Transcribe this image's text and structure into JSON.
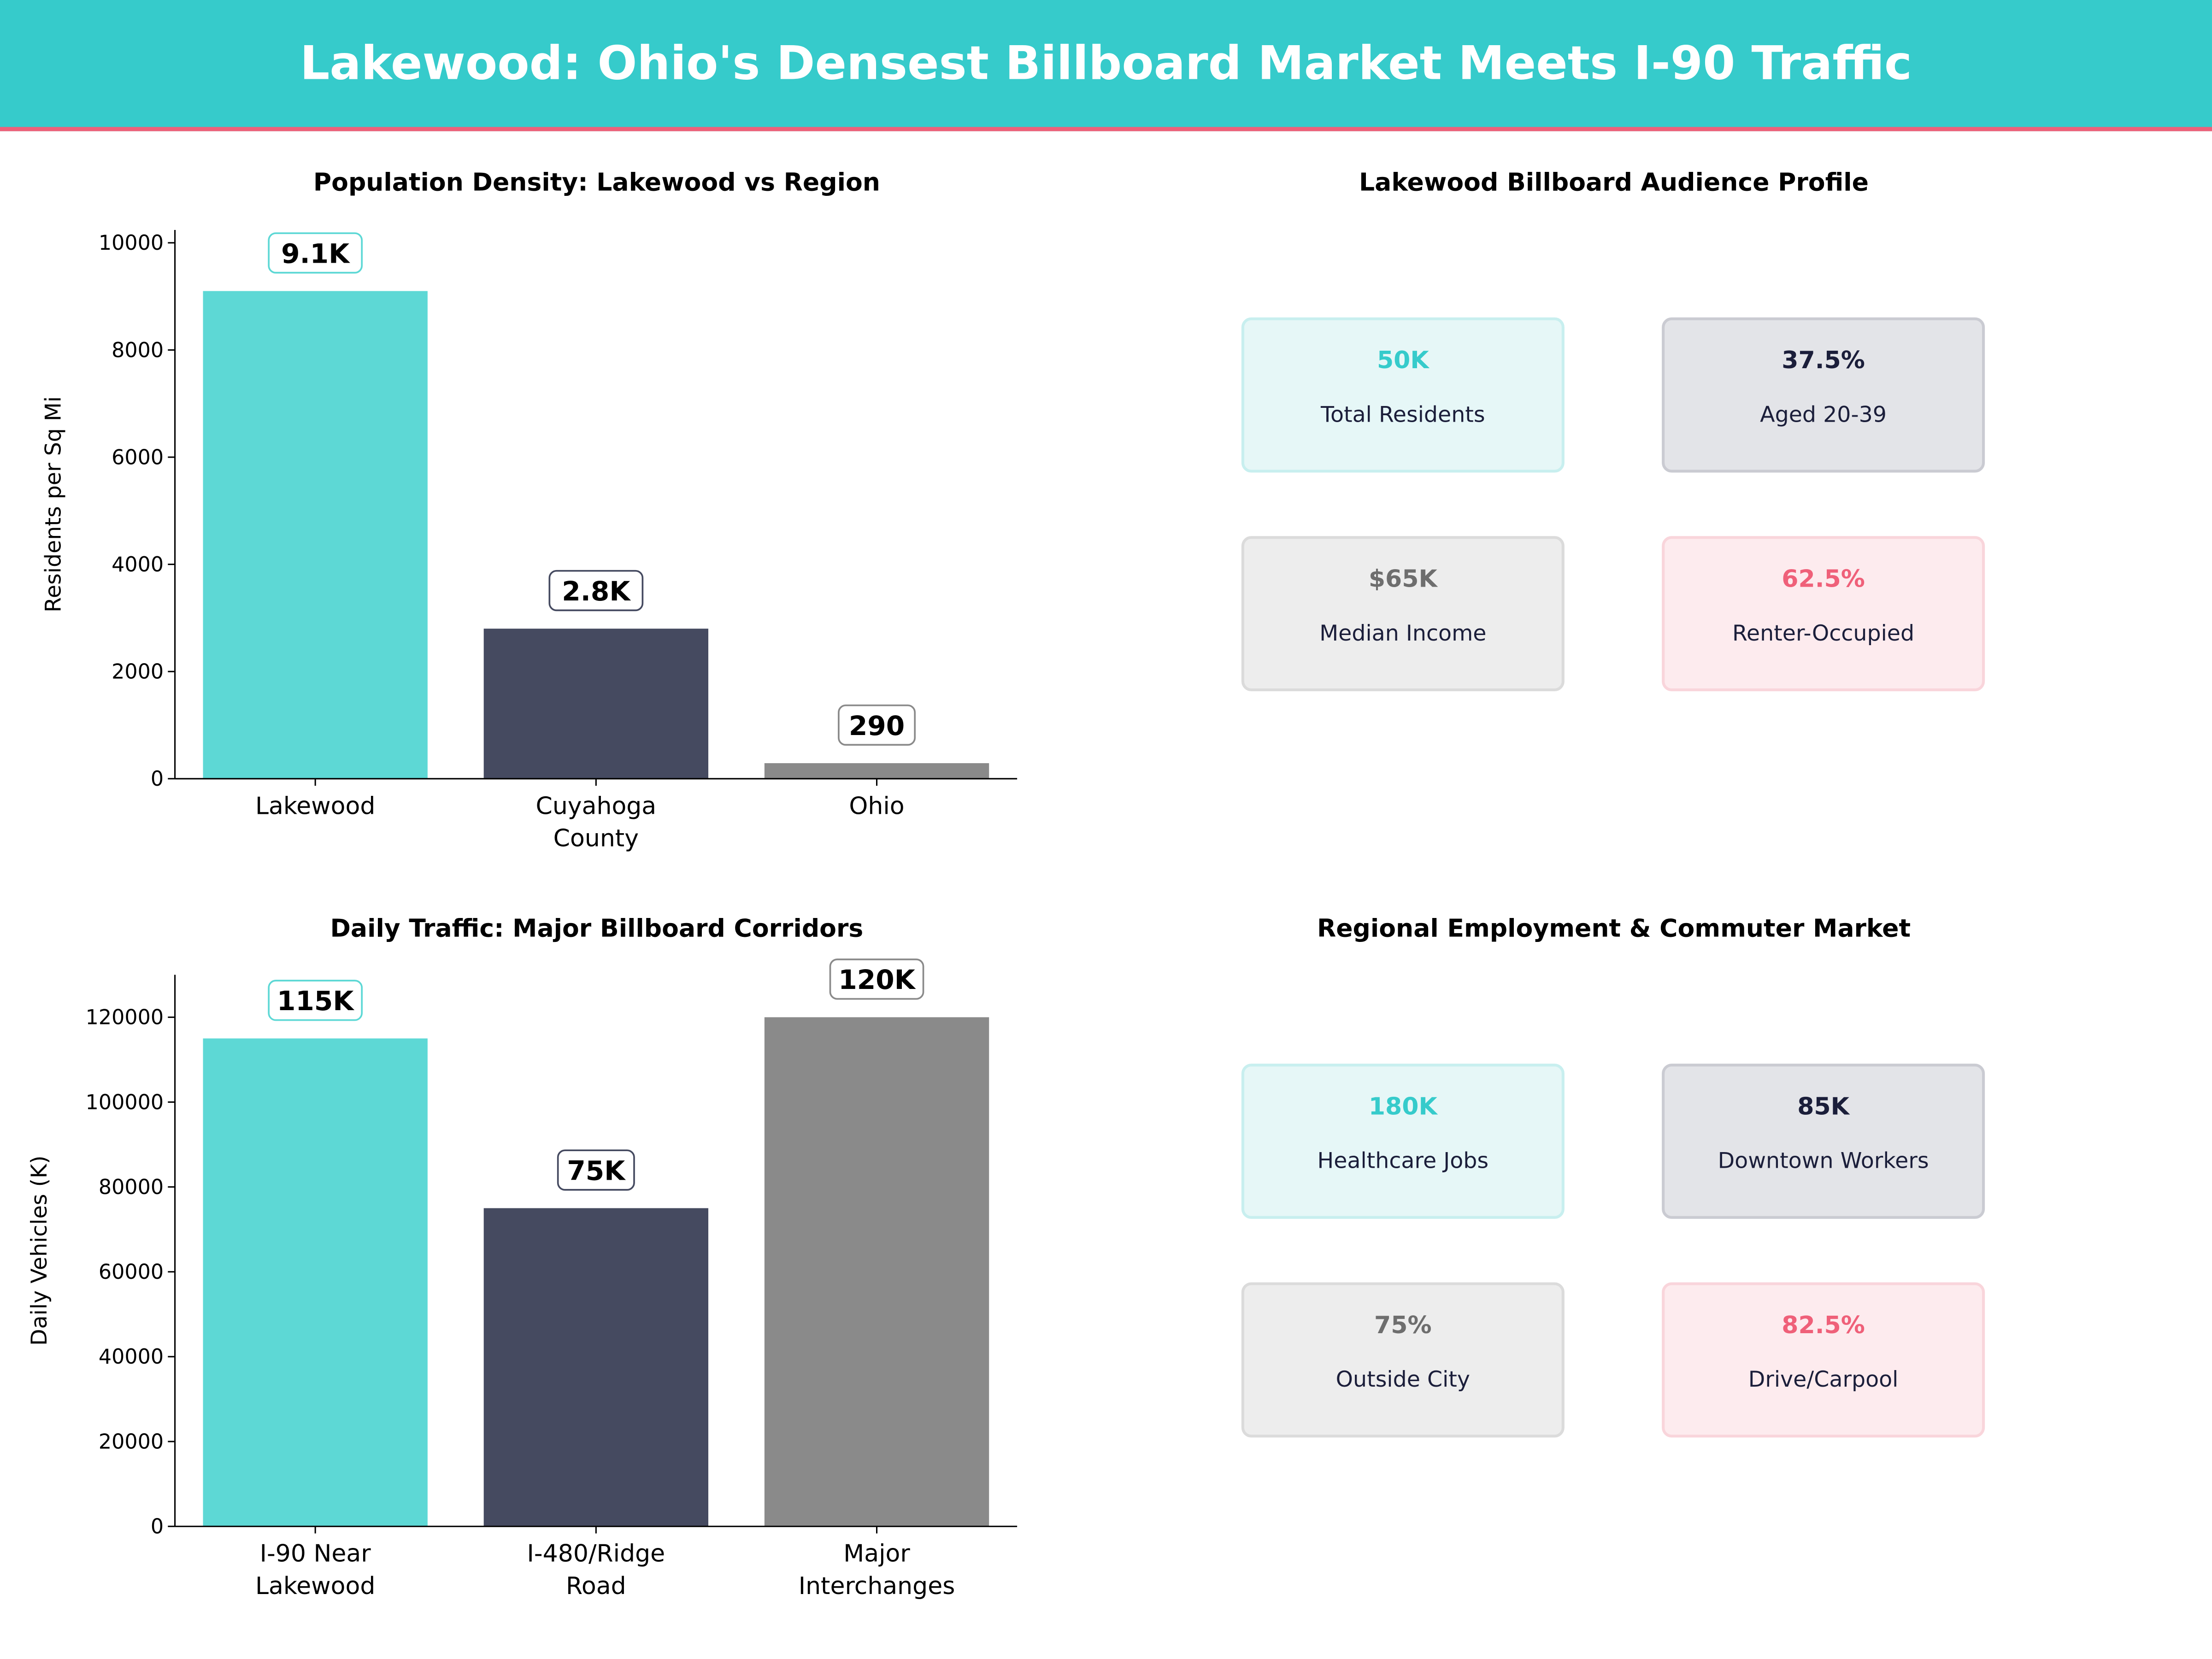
{
  "header": {
    "title": "Lakewood: Ohio's Densest Billboard Market Meets I-90 Traffic"
  },
  "colors": {
    "header_bg": "#36CBCB",
    "header_accent": "#EF6079",
    "teal": "#5DD8D5",
    "navy": "#454A60",
    "gray": "#8A8A8A"
  },
  "chart_data": [
    {
      "type": "bar",
      "title": "Population Density: Lakewood vs Region",
      "xlabel": "",
      "ylabel": "Residents per Sq Mi",
      "categories": [
        [
          "Lakewood"
        ],
        [
          "Cuyahoga",
          "County"
        ],
        [
          "Ohio"
        ]
      ],
      "values": [
        9100,
        2800,
        290
      ],
      "data_labels": [
        "9.1K",
        "2.8K",
        "290"
      ],
      "bar_colors": [
        "#5DD8D5",
        "#454A60",
        "#8A8A8A"
      ],
      "ylim": [
        0,
        10240
      ],
      "yticks": [
        0,
        2000,
        4000,
        6000,
        8000,
        10000
      ],
      "grid": false
    },
    {
      "type": "bar",
      "title": "Daily Traffic: Major Billboard Corridors",
      "xlabel": "",
      "ylabel": "Daily Vehicles (K)",
      "categories": [
        [
          "I-90 Near",
          "Lakewood"
        ],
        [
          "I-480/Ridge",
          "Road"
        ],
        [
          "Major",
          "Interchanges"
        ]
      ],
      "values": [
        115000,
        75000,
        120000
      ],
      "data_labels": [
        "115K",
        "75K",
        "120K"
      ],
      "bar_colors": [
        "#5DD8D5",
        "#454A60",
        "#8A8A8A"
      ],
      "ylim": [
        0,
        130000
      ],
      "yticks": [
        0,
        20000,
        40000,
        60000,
        80000,
        100000,
        120000
      ],
      "grid": false
    }
  ],
  "panels": [
    {
      "title": "Lakewood Billboard Audience Profile",
      "cards": [
        {
          "value": "50K",
          "label": "Total Residents",
          "bg": "#E6F7F7",
          "border": "#C8EFEF",
          "color": "#36CBCB"
        },
        {
          "value": "37.5%",
          "label": "Aged 20-39",
          "bg": "#E3E4E8",
          "border": "#CACBD2",
          "color": "#1B1E3A"
        },
        {
          "value": "$65K",
          "label": "Median Income",
          "bg": "#EDEDED",
          "border": "#DBDBDB",
          "color": "#6E6E6E"
        },
        {
          "value": "62.5%",
          "label": "Renter-Occupied",
          "bg": "#FDEBEE",
          "border": "#F9D5DB",
          "color": "#EF6079"
        }
      ]
    },
    {
      "title": "Regional Employment & Commuter Market",
      "cards": [
        {
          "value": "180K",
          "label": "Healthcare Jobs",
          "bg": "#E6F7F7",
          "border": "#C8EFEF",
          "color": "#36CBCB"
        },
        {
          "value": "85K",
          "label": "Downtown Workers",
          "bg": "#E3E4E8",
          "border": "#CACBD2",
          "color": "#1B1E3A"
        },
        {
          "value": "75%",
          "label": "Outside City",
          "bg": "#EDEDED",
          "border": "#DBDBDB",
          "color": "#6E6E6E"
        },
        {
          "value": "82.5%",
          "label": "Drive/Carpool",
          "bg": "#FDEBEE",
          "border": "#F9D5DB",
          "color": "#EF6079"
        }
      ]
    }
  ]
}
